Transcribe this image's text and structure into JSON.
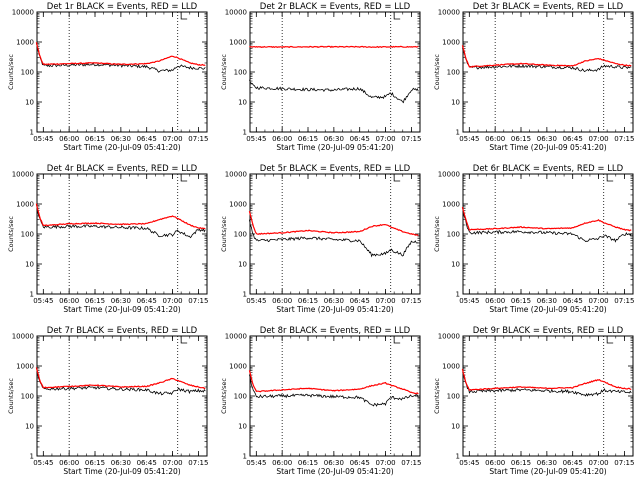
{
  "chart_data": {
    "type": "line",
    "layout": "3x3 grid of panels",
    "y_scale": "log",
    "ylim": [
      1,
      10000
    ],
    "ytick_labels": [
      "1",
      "10",
      "100",
      "1000",
      "10000"
    ],
    "xtick_labels": [
      "05:45",
      "06:00",
      "06:15",
      "06:30",
      "06:45",
      "07:00",
      "07:15"
    ],
    "x_range": [
      "05:41:20",
      "07:20"
    ],
    "xlabel": "Start Time (20-Jul-09 05:41:20)",
    "ylabel": "Counts/sec",
    "vertical_dotted_lines": [
      "06:00",
      "07:03"
    ],
    "marker_at": "07:05",
    "colors": {
      "events": "#000000",
      "lld": "#ff0000"
    },
    "panels": [
      {
        "title": "Det 1r BLACK = Events, RED = LLD",
        "x": [
          "05:41",
          "05:43",
          "05:45",
          "06:00",
          "06:15",
          "06:30",
          "06:45",
          "06:52",
          "07:00",
          "07:03",
          "07:10",
          "07:15",
          "07:19"
        ],
        "series": [
          {
            "name": "Events",
            "values": [
              900,
              300,
              160,
              170,
              180,
              165,
              150,
              110,
              115,
              160,
              140,
              135,
              130
            ]
          },
          {
            "name": "LLD",
            "values": [
              1000,
              330,
              180,
              190,
              200,
              180,
              190,
              230,
              340,
              300,
              200,
              175,
              170
            ]
          }
        ]
      },
      {
        "title": "Det 2r BLACK = Events, RED = LLD",
        "x": [
          "05:41",
          "05:43",
          "05:45",
          "06:00",
          "06:15",
          "06:30",
          "06:45",
          "06:52",
          "07:00",
          "07:03",
          "07:10",
          "07:15",
          "07:19"
        ],
        "series": [
          {
            "name": "Events",
            "values": [
              50,
              35,
              30,
              28,
              26,
              25,
              28,
              14,
              15,
              20,
              10,
              26,
              25
            ]
          },
          {
            "name": "LLD",
            "values": [
              700,
              680,
              690,
              680,
              690,
              690,
              690,
              680,
              685,
              690,
              690,
              685,
              690
            ]
          }
        ]
      },
      {
        "title": "Det 3r BLACK = Events, RED = LLD",
        "x": [
          "05:41",
          "05:43",
          "05:45",
          "06:00",
          "06:15",
          "06:30",
          "06:45",
          "06:52",
          "07:00",
          "07:03",
          "07:10",
          "07:15",
          "07:19"
        ],
        "series": [
          {
            "name": "Events",
            "values": [
              700,
              250,
              140,
              150,
              160,
              150,
              140,
              110,
              120,
              160,
              150,
              140,
              140
            ]
          },
          {
            "name": "LLD",
            "values": [
              800,
              280,
              150,
              170,
              190,
              170,
              160,
              230,
              280,
              250,
              190,
              170,
              160
            ]
          }
        ]
      },
      {
        "title": "Det 4r BLACK = Events, RED = LLD",
        "x": [
          "05:41",
          "05:43",
          "05:45",
          "06:00",
          "06:15",
          "06:30",
          "06:45",
          "06:52",
          "07:00",
          "07:03",
          "07:10",
          "07:15",
          "07:19"
        ],
        "series": [
          {
            "name": "Events",
            "values": [
              900,
              300,
              170,
              180,
              180,
              165,
              155,
              90,
              95,
              130,
              80,
              140,
              135
            ]
          },
          {
            "name": "LLD",
            "values": [
              1000,
              350,
              190,
              220,
              230,
              210,
              220,
              300,
              400,
              330,
              200,
              160,
              150
            ]
          }
        ]
      },
      {
        "title": "Det 5r BLACK = Events, RED = LLD",
        "x": [
          "05:41",
          "05:43",
          "05:45",
          "06:00",
          "06:15",
          "06:30",
          "06:45",
          "06:52",
          "07:00",
          "07:03",
          "07:10",
          "07:15",
          "07:19"
        ],
        "series": [
          {
            "name": "Events",
            "values": [
              300,
              100,
              60,
              65,
              75,
              65,
              60,
              20,
              22,
              30,
              20,
              55,
              55
            ]
          },
          {
            "name": "LLD",
            "values": [
              600,
              200,
              100,
              110,
              130,
              110,
              120,
              180,
              210,
              170,
              120,
              100,
              90
            ]
          }
        ]
      },
      {
        "title": "Det 6r BLACK = Events, RED = LLD",
        "x": [
          "05:41",
          "05:43",
          "05:45",
          "06:00",
          "06:15",
          "06:30",
          "06:45",
          "06:52",
          "07:00",
          "07:03",
          "07:10",
          "07:15",
          "07:19"
        ],
        "series": [
          {
            "name": "Events",
            "values": [
              700,
              250,
              110,
              115,
              120,
              110,
              100,
              60,
              70,
              90,
              60,
              100,
              100
            ]
          },
          {
            "name": "LLD",
            "values": [
              800,
              300,
              140,
              150,
              170,
              150,
              160,
              230,
              290,
              240,
              170,
              140,
              130
            ]
          }
        ]
      },
      {
        "title": "Det 7r BLACK = Events, RED = LLD",
        "x": [
          "05:41",
          "05:43",
          "05:45",
          "06:00",
          "06:15",
          "06:30",
          "06:45",
          "06:52",
          "07:00",
          "07:03",
          "07:10",
          "07:15",
          "07:19"
        ],
        "series": [
          {
            "name": "Events",
            "values": [
              800,
              280,
              170,
              180,
              190,
              170,
              160,
              120,
              125,
              170,
              140,
              150,
              145
            ]
          },
          {
            "name": "LLD",
            "values": [
              900,
              320,
              190,
              210,
              230,
              200,
              210,
              270,
              380,
              330,
              230,
              200,
              180
            ]
          }
        ]
      },
      {
        "title": "Det 8r BLACK = Events, RED = LLD",
        "x": [
          "05:41",
          "05:43",
          "05:45",
          "06:00",
          "06:15",
          "06:30",
          "06:45",
          "06:52",
          "07:00",
          "07:03",
          "07:10",
          "07:15",
          "07:19"
        ],
        "series": [
          {
            "name": "Events",
            "values": [
              500,
              160,
              95,
              100,
              105,
              95,
              90,
              50,
              55,
              90,
              80,
              100,
              100
            ]
          },
          {
            "name": "LLD",
            "values": [
              700,
              250,
              140,
              160,
              180,
              150,
              170,
              220,
              270,
              230,
              170,
              130,
              120
            ]
          }
        ]
      },
      {
        "title": "Det 9r BLACK = Events, RED = LLD",
        "x": [
          "05:41",
          "05:43",
          "05:45",
          "06:00",
          "06:15",
          "06:30",
          "06:45",
          "06:52",
          "07:00",
          "07:03",
          "07:10",
          "07:15",
          "07:19"
        ],
        "series": [
          {
            "name": "Events",
            "values": [
              700,
              240,
              140,
              150,
              160,
              150,
              140,
              110,
              120,
              155,
              140,
              135,
              130
            ]
          },
          {
            "name": "LLD",
            "values": [
              800,
              270,
              160,
              180,
              200,
              180,
              190,
              260,
              350,
              300,
              200,
              180,
              170
            ]
          }
        ]
      }
    ]
  }
}
